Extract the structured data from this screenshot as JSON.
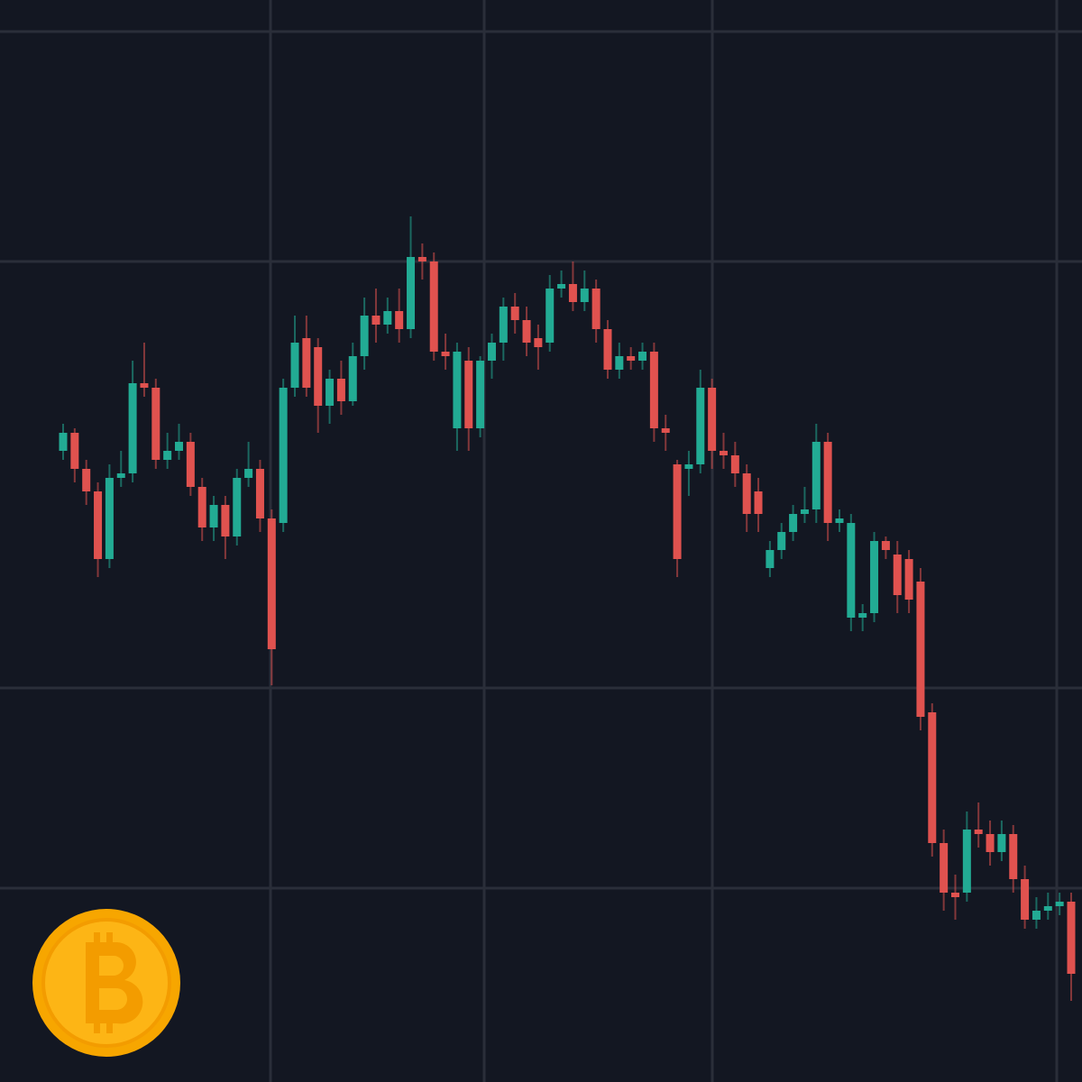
{
  "chart_data": {
    "type": "candlestick",
    "up_color": "#22ab94",
    "down_color": "#e0524f",
    "ylim": [
      0,
      1200
    ],
    "open": [
      700,
      720,
      680,
      655,
      580,
      670,
      675,
      775,
      770,
      690,
      700,
      710,
      660,
      615,
      640,
      605,
      670,
      680,
      625,
      620,
      770,
      825,
      815,
      750,
      780,
      755,
      805,
      850,
      840,
      855,
      835,
      915,
      910,
      810,
      725,
      800,
      725,
      800,
      820,
      860,
      845,
      825,
      820,
      880,
      885,
      865,
      880,
      835,
      790,
      805,
      800,
      810,
      725,
      685,
      680,
      685,
      770,
      700,
      695,
      675,
      655,
      570,
      590,
      610,
      630,
      635,
      710,
      620,
      515,
      515,
      520,
      600,
      585,
      580,
      555,
      410,
      265,
      210,
      210,
      280,
      275,
      255,
      275,
      225,
      180,
      190,
      195,
      200
    ],
    "high": [
      730,
      725,
      690,
      665,
      685,
      700,
      800,
      820,
      780,
      720,
      730,
      720,
      670,
      650,
      650,
      680,
      710,
      690,
      635,
      780,
      850,
      850,
      825,
      790,
      800,
      820,
      870,
      880,
      870,
      880,
      960,
      930,
      920,
      830,
      820,
      815,
      805,
      830,
      870,
      875,
      860,
      840,
      895,
      900,
      910,
      900,
      890,
      845,
      820,
      815,
      820,
      820,
      740,
      690,
      700,
      790,
      780,
      720,
      710,
      685,
      670,
      600,
      620,
      640,
      660,
      730,
      720,
      635,
      630,
      530,
      610,
      605,
      600,
      590,
      570,
      420,
      280,
      230,
      300,
      310,
      290,
      290,
      285,
      240,
      205,
      210,
      210,
      210
    ],
    "low": [
      690,
      665,
      640,
      560,
      570,
      660,
      665,
      760,
      680,
      680,
      690,
      650,
      600,
      600,
      580,
      595,
      660,
      610,
      440,
      610,
      760,
      760,
      720,
      730,
      740,
      750,
      790,
      820,
      830,
      820,
      825,
      890,
      800,
      790,
      700,
      700,
      715,
      780,
      800,
      830,
      805,
      790,
      810,
      870,
      855,
      855,
      820,
      780,
      780,
      790,
      790,
      710,
      700,
      560,
      650,
      675,
      680,
      680,
      660,
      610,
      610,
      560,
      580,
      600,
      620,
      620,
      600,
      610,
      500,
      500,
      510,
      580,
      520,
      520,
      390,
      250,
      190,
      180,
      200,
      260,
      240,
      245,
      210,
      170,
      170,
      180,
      185,
      90
    ],
    "close": [
      720,
      680,
      655,
      580,
      670,
      675,
      775,
      770,
      690,
      700,
      710,
      660,
      615,
      640,
      605,
      670,
      680,
      625,
      480,
      770,
      820,
      770,
      750,
      780,
      755,
      805,
      850,
      840,
      855,
      835,
      915,
      910,
      810,
      805,
      810,
      725,
      800,
      820,
      860,
      845,
      820,
      815,
      880,
      885,
      865,
      880,
      835,
      790,
      805,
      800,
      810,
      725,
      720,
      580,
      685,
      770,
      700,
      695,
      675,
      630,
      630,
      590,
      610,
      630,
      635,
      710,
      620,
      625,
      620,
      520,
      600,
      590,
      540,
      535,
      405,
      265,
      210,
      205,
      280,
      275,
      255,
      275,
      225,
      180,
      190,
      195,
      200,
      120
    ]
  }
}
